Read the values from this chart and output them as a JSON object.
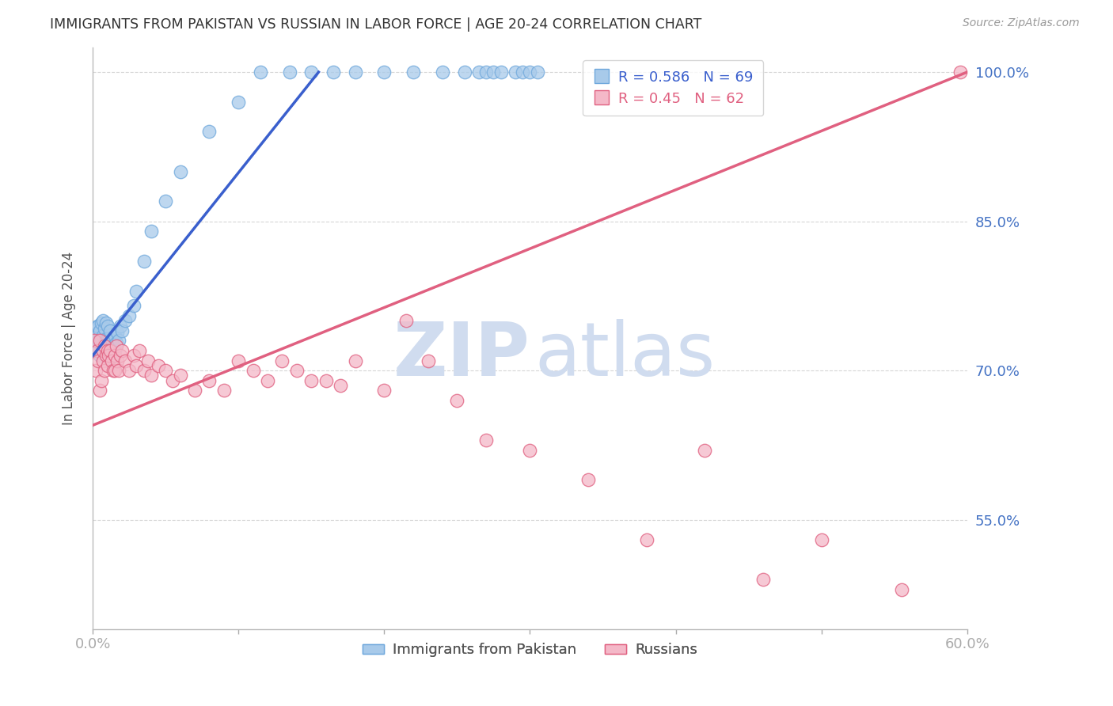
{
  "title": "IMMIGRANTS FROM PAKISTAN VS RUSSIAN IN LABOR FORCE | AGE 20-24 CORRELATION CHART",
  "source": "Source: ZipAtlas.com",
  "ylabel": "In Labor Force | Age 20-24",
  "xlim": [
    0.0,
    0.6
  ],
  "ylim": [
    0.44,
    1.025
  ],
  "yticks": [
    0.55,
    0.7,
    0.85,
    1.0
  ],
  "xticks": [
    0.0,
    0.1,
    0.2,
    0.3,
    0.4,
    0.5,
    0.6
  ],
  "pakistan_color": "#A8CAEA",
  "pakistan_edge": "#6FA8DC",
  "russian_color": "#F4B8C8",
  "russian_edge": "#E06080",
  "pakistan_R": 0.586,
  "pakistan_N": 69,
  "russian_R": 0.45,
  "russian_N": 62,
  "pakistan_line_color": "#3A5FCD",
  "russian_line_color": "#E06080",
  "watermark_zip": "ZIP",
  "watermark_atlas": "atlas",
  "watermark_color": "#D0DCEF",
  "pak_line_x0": 0.0,
  "pak_line_y0": 0.715,
  "pak_line_x1": 0.155,
  "pak_line_y1": 1.0,
  "rus_line_x0": 0.0,
  "rus_line_y0": 0.645,
  "rus_line_x1": 0.6,
  "rus_line_y1": 1.0,
  "pak_scatter_x": [
    0.001,
    0.002,
    0.002,
    0.003,
    0.003,
    0.003,
    0.004,
    0.004,
    0.004,
    0.005,
    0.005,
    0.005,
    0.006,
    0.006,
    0.006,
    0.007,
    0.007,
    0.007,
    0.008,
    0.008,
    0.008,
    0.009,
    0.009,
    0.009,
    0.01,
    0.01,
    0.01,
    0.01,
    0.011,
    0.011,
    0.012,
    0.012,
    0.013,
    0.013,
    0.014,
    0.015,
    0.015,
    0.016,
    0.017,
    0.018,
    0.019,
    0.02,
    0.022,
    0.025,
    0.028,
    0.03,
    0.035,
    0.04,
    0.05,
    0.06,
    0.08,
    0.1,
    0.115,
    0.135,
    0.15,
    0.165,
    0.18,
    0.2,
    0.22,
    0.24,
    0.255,
    0.265,
    0.27,
    0.275,
    0.28,
    0.29,
    0.295,
    0.3,
    0.305
  ],
  "pak_scatter_y": [
    0.72,
    0.73,
    0.74,
    0.725,
    0.735,
    0.745,
    0.72,
    0.73,
    0.745,
    0.715,
    0.728,
    0.74,
    0.718,
    0.732,
    0.748,
    0.72,
    0.735,
    0.75,
    0.715,
    0.728,
    0.742,
    0.718,
    0.732,
    0.748,
    0.71,
    0.72,
    0.732,
    0.745,
    0.715,
    0.73,
    0.72,
    0.74,
    0.715,
    0.73,
    0.725,
    0.72,
    0.735,
    0.728,
    0.738,
    0.73,
    0.745,
    0.74,
    0.75,
    0.755,
    0.765,
    0.78,
    0.81,
    0.84,
    0.87,
    0.9,
    0.94,
    0.97,
    1.0,
    1.0,
    1.0,
    1.0,
    1.0,
    1.0,
    1.0,
    1.0,
    1.0,
    1.0,
    1.0,
    1.0,
    1.0,
    1.0,
    1.0,
    1.0,
    1.0
  ],
  "rus_scatter_x": [
    0.001,
    0.002,
    0.003,
    0.004,
    0.005,
    0.005,
    0.006,
    0.007,
    0.007,
    0.008,
    0.008,
    0.009,
    0.01,
    0.01,
    0.011,
    0.012,
    0.013,
    0.014,
    0.015,
    0.015,
    0.016,
    0.017,
    0.018,
    0.019,
    0.02,
    0.022,
    0.025,
    0.028,
    0.03,
    0.032,
    0.035,
    0.038,
    0.04,
    0.045,
    0.05,
    0.055,
    0.06,
    0.07,
    0.08,
    0.09,
    0.1,
    0.11,
    0.12,
    0.13,
    0.14,
    0.15,
    0.16,
    0.17,
    0.18,
    0.2,
    0.215,
    0.23,
    0.25,
    0.27,
    0.3,
    0.34,
    0.38,
    0.42,
    0.46,
    0.5,
    0.555,
    0.595
  ],
  "rus_scatter_y": [
    0.73,
    0.7,
    0.72,
    0.71,
    0.68,
    0.73,
    0.69,
    0.71,
    0.72,
    0.7,
    0.725,
    0.715,
    0.72,
    0.705,
    0.715,
    0.72,
    0.71,
    0.7,
    0.715,
    0.7,
    0.725,
    0.71,
    0.7,
    0.715,
    0.72,
    0.71,
    0.7,
    0.715,
    0.705,
    0.72,
    0.7,
    0.71,
    0.695,
    0.705,
    0.7,
    0.69,
    0.695,
    0.68,
    0.69,
    0.68,
    0.71,
    0.7,
    0.69,
    0.71,
    0.7,
    0.69,
    0.69,
    0.685,
    0.71,
    0.68,
    0.75,
    0.71,
    0.67,
    0.63,
    0.62,
    0.59,
    0.53,
    0.62,
    0.49,
    0.53,
    0.48,
    1.0
  ]
}
